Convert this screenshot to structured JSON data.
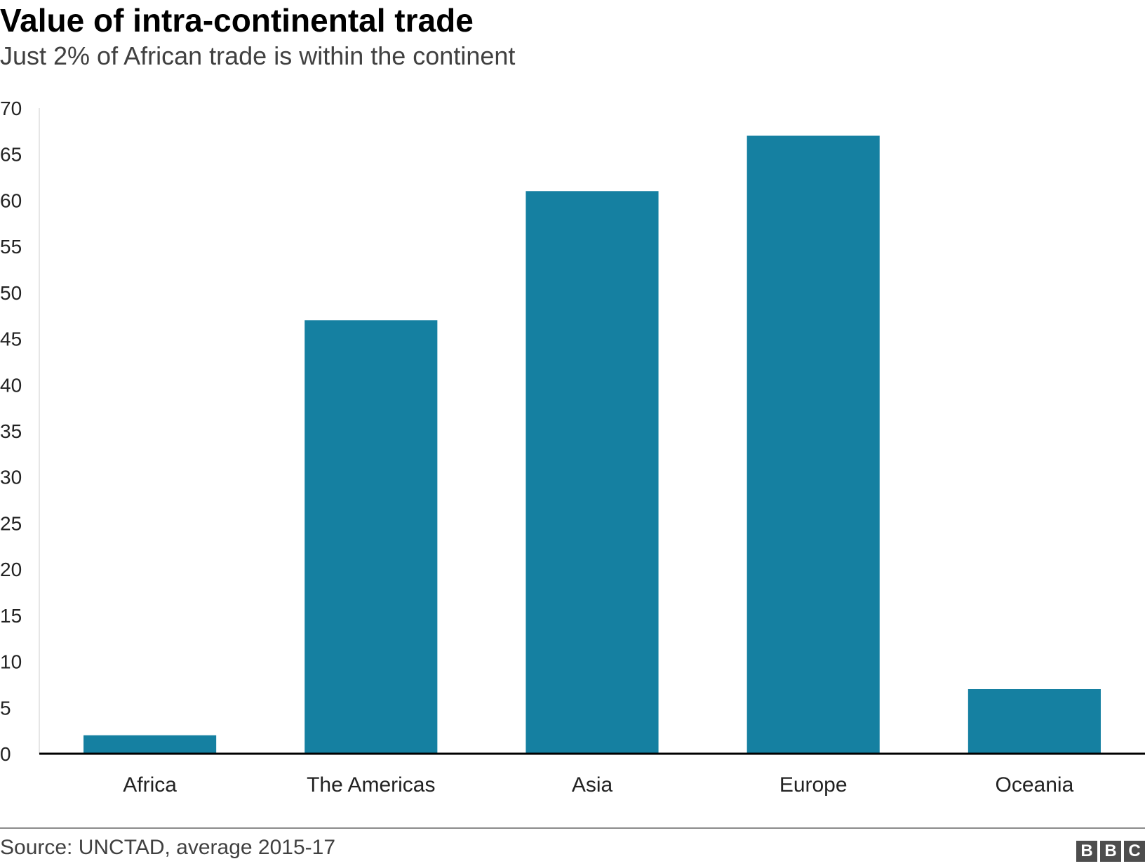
{
  "header": {
    "title": "Value of intra-continental trade",
    "subtitle": "Just 2% of African trade is within the continent"
  },
  "footer": {
    "source": "Source: UNCTAD, average 2015-17",
    "logo_letters": [
      "B",
      "B",
      "C"
    ]
  },
  "colors": {
    "bar": "#1580a1",
    "baseline": "#000000",
    "axis": "#cccccc"
  },
  "chart_data": {
    "type": "bar",
    "title": "Value of intra-continental trade",
    "subtitle": "Just 2% of African trade is within the continent",
    "categories": [
      "Africa",
      "The Americas",
      "Asia",
      "Europe",
      "Oceania"
    ],
    "values": [
      2,
      47,
      61,
      67,
      7
    ],
    "ylim": [
      0,
      70
    ],
    "yticks": [
      0,
      5,
      10,
      15,
      20,
      25,
      30,
      35,
      40,
      45,
      50,
      55,
      60,
      65,
      70
    ],
    "xlabel": "",
    "ylabel": "",
    "grid": false,
    "legend": "none"
  }
}
